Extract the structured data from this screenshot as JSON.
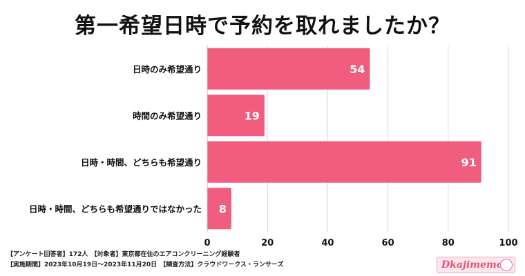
{
  "chart_data": {
    "type": "bar",
    "orientation": "horizontal",
    "title": "第一希望日時で予約を取れましたか？",
    "categories": [
      "日時のみ希望通り",
      "時間のみ希望通り",
      "日時・時間、どちらも希望通り",
      "日時・時間、どちらも希望通りではなかった"
    ],
    "values": [
      54,
      19,
      91,
      8
    ],
    "xlim": [
      0,
      100
    ],
    "xticks": [
      0,
      20,
      40,
      60,
      80,
      100
    ],
    "grid": true,
    "bar_color": "#f05d7e"
  },
  "footnotes": {
    "line1_part1": "【アンケート回答者】172人",
    "line1_part2": "【対象者】東京都在住のエアコンクリーニング経験者",
    "line2_part1": "【実施期間】2023年10月19日～2023年11月20日",
    "line2_part2": "【調査方法】クラウドワークス・ランサーズ"
  },
  "logo": {
    "text": "Dkajimemo"
  }
}
